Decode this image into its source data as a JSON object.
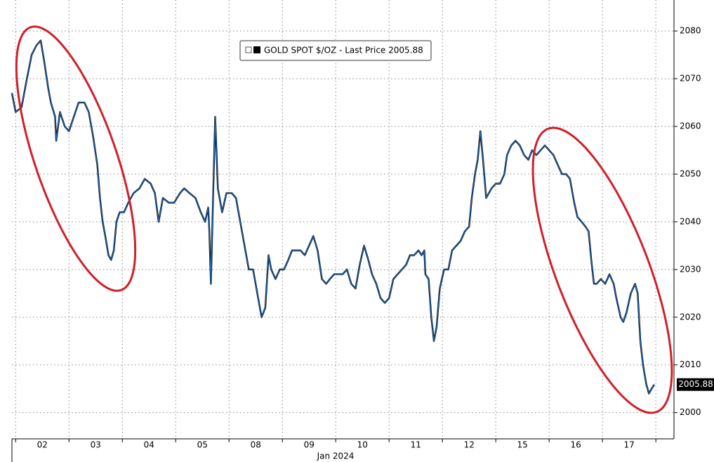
{
  "chart_data": {
    "type": "line",
    "legend": "GOLD SPOT $/OZ - Last Price 2005.88",
    "x_label": "Jan 2024",
    "last_value": 2005.88,
    "xlim": [
      -0.07,
      12.34
    ],
    "xticks": [
      {
        "value": 0.5,
        "label": "02"
      },
      {
        "value": 1.5,
        "label": "03"
      },
      {
        "value": 2.5,
        "label": "04"
      },
      {
        "value": 3.5,
        "label": "05"
      },
      {
        "value": 4.5,
        "label": "08"
      },
      {
        "value": 5.5,
        "label": "09"
      },
      {
        "value": 6.5,
        "label": "10"
      },
      {
        "value": 7.5,
        "label": "11"
      },
      {
        "value": 8.5,
        "label": "12"
      },
      {
        "value": 9.5,
        "label": "15"
      },
      {
        "value": 10.5,
        "label": "16"
      },
      {
        "value": 11.5,
        "label": "17"
      }
    ],
    "xgrid": [
      0,
      1,
      2,
      3,
      4,
      5,
      6,
      7,
      8,
      9,
      10,
      11,
      12
    ],
    "ylim": [
      1994.5,
      2086.5
    ],
    "yticks": [
      2000,
      2010,
      2020,
      2030,
      2040,
      2050,
      2060,
      2070,
      2080
    ],
    "grid": true,
    "color": "#1f6fc4",
    "x": [
      -0.07,
      0,
      0.11,
      0.21,
      0.3,
      0.39,
      0.47,
      0.53,
      0.61,
      0.66,
      0.74,
      0.76,
      0.83,
      0.92,
      1.0,
      1.09,
      1.18,
      1.29,
      1.37,
      1.45,
      1.53,
      1.58,
      1.63,
      1.68,
      1.74,
      1.79,
      1.84,
      1.89,
      1.95,
      2.03,
      2.11,
      2.21,
      2.32,
      2.42,
      2.53,
      2.61,
      2.68,
      2.76,
      2.87,
      2.97,
      3.08,
      3.16,
      3.26,
      3.37,
      3.47,
      3.55,
      3.61,
      3.63,
      3.66,
      3.7,
      3.74,
      3.79,
      3.87,
      3.95,
      4.05,
      4.13,
      4.21,
      4.29,
      4.37,
      4.45,
      4.53,
      4.61,
      4.68,
      4.74,
      4.79,
      4.87,
      4.95,
      5.03,
      5.11,
      5.18,
      5.26,
      5.34,
      5.42,
      5.5,
      5.58,
      5.66,
      5.74,
      5.82,
      5.89,
      5.97,
      6.05,
      6.13,
      6.21,
      6.29,
      6.37,
      6.45,
      6.53,
      6.61,
      6.68,
      6.76,
      6.84,
      6.92,
      7.0,
      7.08,
      7.16,
      7.24,
      7.32,
      7.39,
      7.47,
      7.55,
      7.61,
      7.66,
      7.68,
      7.74,
      7.79,
      7.84,
      7.89,
      7.95,
      8.03,
      8.11,
      8.18,
      8.26,
      8.34,
      8.42,
      8.5,
      8.55,
      8.61,
      8.66,
      8.71,
      8.76,
      8.82,
      8.87,
      8.92,
      9.0,
      9.08,
      9.16,
      9.21,
      9.29,
      9.37,
      9.45,
      9.53,
      9.61,
      9.68,
      9.76,
      9.84,
      9.92,
      10.0,
      10.08,
      10.16,
      10.24,
      10.32,
      10.39,
      10.47,
      10.53,
      10.61,
      10.68,
      10.74,
      10.79,
      10.84,
      10.89,
      10.97,
      11.05,
      11.13,
      11.21,
      11.26,
      11.34,
      11.39,
      11.45,
      11.53,
      11.61,
      11.66,
      11.71,
      11.76,
      11.82,
      11.87,
      11.92,
      11.97
    ],
    "values": [
      2067,
      2063,
      2064,
      2070,
      2075,
      2077,
      2078,
      2074,
      2068,
      2065,
      2062,
      2057,
      2063,
      2060,
      2059,
      2062,
      2065,
      2065,
      2063,
      2058,
      2052,
      2045,
      2040,
      2037,
      2033,
      2032,
      2034,
      2040,
      2042,
      2042,
      2044,
      2046,
      2047,
      2049,
      2048,
      2046,
      2040,
      2045,
      2044,
      2044,
      2046,
      2047,
      2046,
      2045,
      2042,
      2040,
      2043,
      2038,
      2027,
      2045,
      2062,
      2047,
      2042,
      2046,
      2046,
      2045,
      2040,
      2035,
      2030,
      2030,
      2025,
      2020,
      2022,
      2033,
      2030,
      2028,
      2030,
      2030,
      2032,
      2034,
      2034,
      2034,
      2033,
      2035,
      2037,
      2034,
      2028,
      2027,
      2028,
      2029,
      2029,
      2029,
      2030,
      2027,
      2026,
      2031,
      2035,
      2032,
      2029,
      2027,
      2024,
      2023,
      2024,
      2028,
      2029,
      2030,
      2031,
      2033,
      2033,
      2034,
      2033,
      2034,
      2029,
      2028,
      2020,
      2015,
      2018,
      2026,
      2030,
      2030,
      2034,
      2035,
      2036,
      2038,
      2039,
      2045,
      2050,
      2053,
      2059,
      2053,
      2045,
      2046,
      2047,
      2048,
      2048,
      2050,
      2054,
      2056,
      2057,
      2056,
      2054,
      2053,
      2055,
      2054,
      2055,
      2056,
      2055,
      2054,
      2052,
      2050,
      2050,
      2049,
      2044,
      2041,
      2040,
      2039,
      2038,
      2032,
      2027,
      2027,
      2028,
      2027,
      2029,
      2027,
      2024,
      2020,
      2019,
      2021,
      2025,
      2027,
      2025,
      2015,
      2010,
      2006,
      2004,
      2005,
      2005.88
    ]
  }
}
